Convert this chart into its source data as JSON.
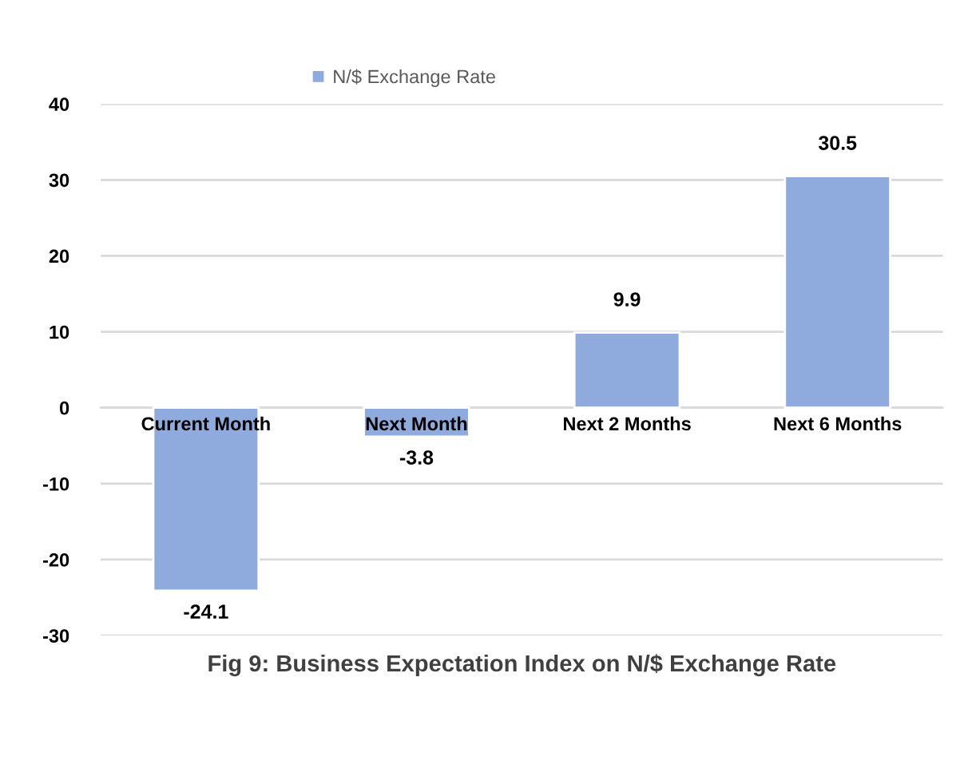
{
  "chart_data": {
    "type": "bar",
    "title": "Fig 9: Business Expectation Index on N/$ Exchange Rate",
    "categories": [
      "Current Month",
      "Next Month",
      "Next 2 Months",
      "Next 6 Months"
    ],
    "series": [
      {
        "name": "N/$ Exchange Rate",
        "color": "#8faadc",
        "values": [
          -24.1,
          -3.8,
          9.9,
          30.5
        ]
      }
    ],
    "ylim": [
      -30,
      40
    ],
    "yticks": [
      -30,
      -20,
      -10,
      0,
      10,
      20,
      30,
      40
    ],
    "grid": "y",
    "legend": "top",
    "data_labels": true
  }
}
